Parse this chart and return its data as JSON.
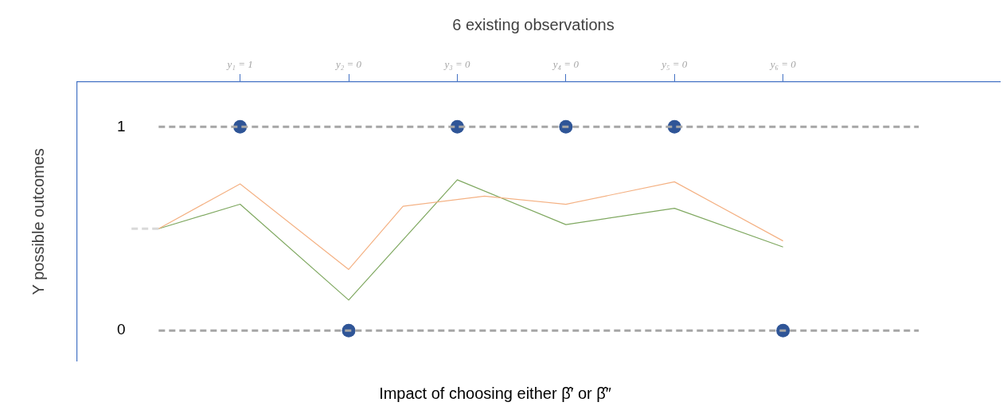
{
  "chart_data": {
    "type": "line",
    "title": "6 existing observations",
    "xlabel": "Impact of choosing either β̂′ or β̂″",
    "ylabel": "Y possible outcomes",
    "categories": [
      null,
      null,
      null,
      null,
      null,
      null,
      "y₁ = 1",
      null,
      null,
      null,
      "y₂ = 0",
      null,
      null,
      null,
      "y₃ = 0",
      null,
      null,
      null,
      "y₄ = 0",
      null,
      null,
      null,
      "y₅ = 0",
      null,
      null,
      null,
      "y₆ = 0",
      null,
      null,
      null,
      null,
      null,
      null,
      null,
      null
    ],
    "ylim": [
      -0.15,
      1.22
    ],
    "yticks": [
      0,
      1
    ],
    "grid": false,
    "legend": false,
    "series": [
      {
        "color": "#a6a6a6",
        "line_style": "dashed",
        "marker": "none",
        "values": [
          null,
          null,
          null,
          1,
          null,
          null,
          null,
          null,
          null,
          null,
          null,
          null,
          null,
          null,
          null,
          null,
          null,
          null,
          null,
          null,
          null,
          null,
          null,
          null,
          null,
          null,
          null,
          null,
          null,
          null,
          null,
          1,
          null,
          null,
          null
        ]
      },
      {
        "color": "#a6a6a6",
        "line_style": "dashed",
        "marker": "none",
        "values": [
          null,
          null,
          null,
          0,
          null,
          null,
          null,
          null,
          null,
          null,
          null,
          null,
          null,
          null,
          null,
          null,
          null,
          null,
          null,
          null,
          null,
          null,
          null,
          null,
          null,
          null,
          null,
          null,
          null,
          null,
          null,
          0,
          null,
          null,
          null
        ]
      },
      {
        "color": "#d9d9d9",
        "line_style": "dashed",
        "marker": "none",
        "values": [
          null,
          null,
          0.5,
          0.5,
          null,
          null,
          null,
          null,
          null,
          null,
          null,
          null,
          null,
          null,
          null,
          null,
          null,
          null,
          null,
          null,
          null,
          null,
          null,
          null,
          null,
          null,
          null,
          null,
          null,
          null,
          null,
          null,
          null,
          null,
          null
        ]
      },
      {
        "color": "#f4b183",
        "line_style": "solid",
        "marker": "none",
        "values": [
          null,
          null,
          null,
          0.5,
          null,
          null,
          0.72,
          null,
          null,
          null,
          0.3,
          null,
          0.61,
          null,
          null,
          0.66,
          null,
          null,
          0.62,
          null,
          null,
          null,
          0.73,
          null,
          null,
          null,
          0.44,
          null,
          null,
          null,
          null,
          null,
          null,
          null,
          null
        ]
      },
      {
        "color": "#7fa860",
        "line_style": "solid",
        "marker": "none",
        "values": [
          null,
          null,
          null,
          0.5,
          null,
          null,
          0.62,
          null,
          null,
          null,
          0.15,
          null,
          null,
          null,
          0.74,
          null,
          null,
          null,
          0.52,
          null,
          null,
          null,
          0.6,
          null,
          null,
          null,
          0.41,
          null,
          null,
          null,
          null,
          null,
          null,
          null,
          null
        ]
      },
      {
        "type": "scatter",
        "color": "#2f5597",
        "marker": "circle",
        "values": [
          null,
          null,
          null,
          null,
          null,
          null,
          1,
          null,
          null,
          null,
          0,
          null,
          null,
          null,
          1,
          null,
          null,
          null,
          1,
          null,
          null,
          null,
          1,
          null,
          null,
          null,
          0,
          null,
          null,
          null,
          null,
          null,
          null,
          null,
          null
        ]
      }
    ]
  }
}
